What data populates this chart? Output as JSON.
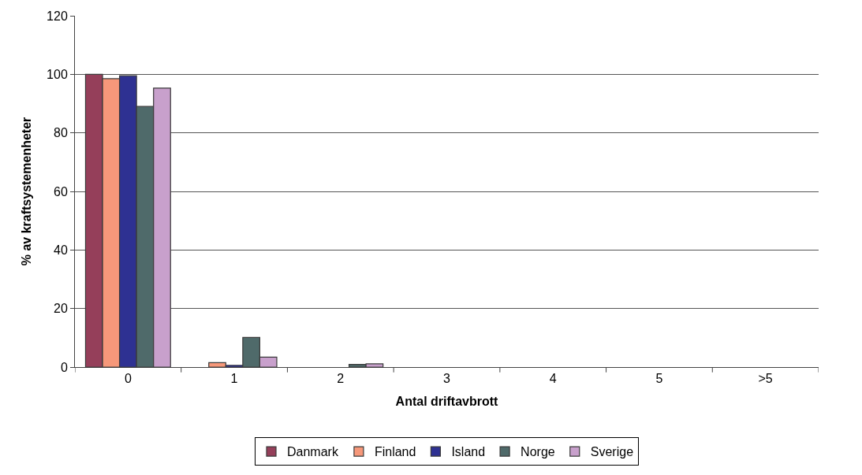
{
  "chart_data": {
    "type": "bar",
    "xlabel": "Antal driftavbrott",
    "ylabel": "% av kraftsystemenheter",
    "categories": [
      "0",
      "1",
      "2",
      "3",
      "4",
      "5",
      ">5"
    ],
    "series": [
      {
        "name": "Danmark",
        "color": "#953f5a",
        "values": [
          100,
          0,
          0,
          0,
          0,
          0,
          0
        ]
      },
      {
        "name": "Finland",
        "color": "#f6987a",
        "values": [
          98.5,
          1.5,
          0,
          0,
          0,
          0,
          0
        ]
      },
      {
        "name": "Island",
        "color": "#2e3192",
        "values": [
          99.5,
          0.6,
          0,
          0,
          0,
          0,
          0
        ]
      },
      {
        "name": "Norge",
        "color": "#4f6a6a",
        "values": [
          89,
          10.1,
          0.9,
          0,
          0,
          0,
          0
        ]
      },
      {
        "name": "Sverige",
        "color": "#c8a0cc",
        "values": [
          95.3,
          3.4,
          1.1,
          0,
          0,
          0,
          0
        ]
      }
    ],
    "ylim": [
      0,
      120
    ],
    "yticks": [
      0,
      20,
      40,
      60,
      80,
      100,
      120
    ],
    "grid": "y",
    "legend": "bottom"
  }
}
